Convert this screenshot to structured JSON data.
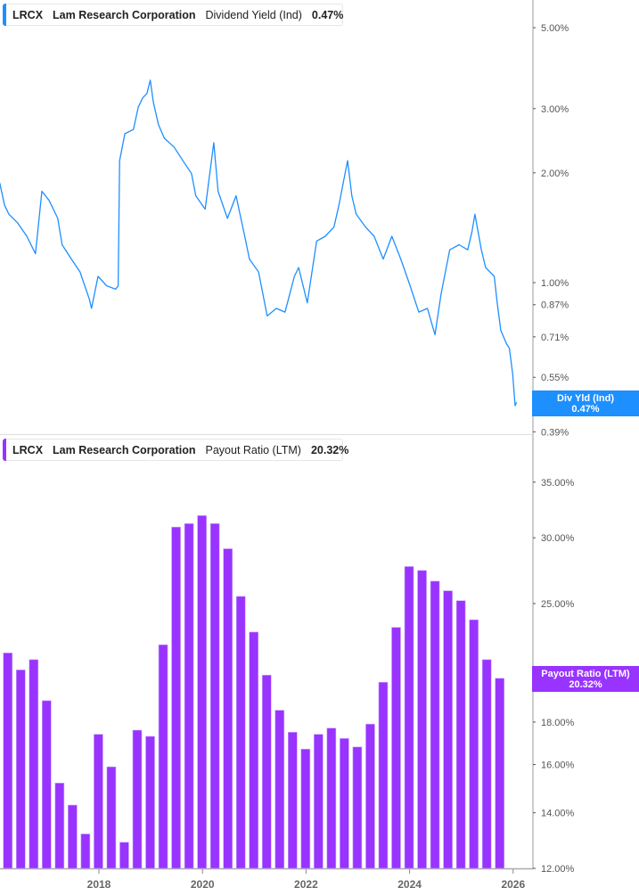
{
  "colors": {
    "dividend_line": "#1e8fff",
    "payout_bar": "#9933ff",
    "axis": "#aaaaaa"
  },
  "top_legend": {
    "ticker": "LRCX",
    "company": "Lam Research Corporation",
    "metric": "Dividend Yield (Ind)",
    "value": "0.47%"
  },
  "bottom_legend": {
    "ticker": "LRCX",
    "company": "Lam Research Corporation",
    "metric": "Payout Ratio (LTM)",
    "value": "20.32%"
  },
  "top_flag": {
    "label": "Div Yld (Ind)",
    "value": "0.47%"
  },
  "bottom_flag": {
    "label": "Payout Ratio (LTM)",
    "value": "20.32%"
  },
  "chart_data": [
    {
      "type": "line",
      "series_name": "Dividend Yield (Ind)",
      "y_scale": "log",
      "ylim": [
        0.36,
        5.6
      ],
      "y_unit": "%",
      "y_ticks": [
        5.0,
        3.0,
        2.0,
        1.0,
        0.87,
        0.71,
        0.55,
        0.39
      ],
      "y_tick_labels": [
        "5.00%",
        "3.00%",
        "2.00%",
        "1.00%",
        "0.87%",
        "0.71%",
        "0.55%",
        "0.39%"
      ],
      "points": [
        [
          "2016-02-01",
          1.88
        ],
        [
          "2016-03-05",
          1.63
        ],
        [
          "2016-04-05",
          1.54
        ],
        [
          "2016-06-05",
          1.46
        ],
        [
          "2016-08-10",
          1.34
        ],
        [
          "2016-10-10",
          1.2
        ],
        [
          "2016-11-25",
          1.78
        ],
        [
          "2017-01-15",
          1.68
        ],
        [
          "2017-03-15",
          1.5
        ],
        [
          "2017-04-15",
          1.27
        ],
        [
          "2017-06-20",
          1.16
        ],
        [
          "2017-08-20",
          1.07
        ],
        [
          "2017-10-25",
          0.9
        ],
        [
          "2017-11-10",
          0.85
        ],
        [
          "2017-12-25",
          1.04
        ],
        [
          "2018-02-25",
          0.98
        ],
        [
          "2018-04-28",
          0.96
        ],
        [
          "2018-05-15",
          0.98
        ],
        [
          "2018-05-25",
          2.16
        ],
        [
          "2018-07-01",
          2.56
        ],
        [
          "2018-09-01",
          2.63
        ],
        [
          "2018-10-05",
          3.03
        ],
        [
          "2018-11-05",
          3.21
        ],
        [
          "2018-12-05",
          3.3
        ],
        [
          "2018-12-28",
          3.59
        ],
        [
          "2019-01-20",
          3.12
        ],
        [
          "2019-02-25",
          2.71
        ],
        [
          "2019-04-05",
          2.49
        ],
        [
          "2019-06-15",
          2.35
        ],
        [
          "2019-08-15",
          2.16
        ],
        [
          "2019-10-15",
          1.99
        ],
        [
          "2019-11-15",
          1.73
        ],
        [
          "2020-01-20",
          1.59
        ],
        [
          "2020-03-20",
          2.42
        ],
        [
          "2020-04-20",
          1.78
        ],
        [
          "2020-06-25",
          1.5
        ],
        [
          "2020-08-25",
          1.73
        ],
        [
          "2020-10-25",
          1.34
        ],
        [
          "2020-11-28",
          1.16
        ],
        [
          "2021-02-01",
          1.07
        ],
        [
          "2021-04-01",
          0.81
        ],
        [
          "2021-06-05",
          0.85
        ],
        [
          "2021-08-05",
          0.83
        ],
        [
          "2021-10-10",
          1.04
        ],
        [
          "2021-11-10",
          1.1
        ],
        [
          "2022-01-10",
          0.88
        ],
        [
          "2022-03-15",
          1.3
        ],
        [
          "2022-05-15",
          1.34
        ],
        [
          "2022-07-15",
          1.42
        ],
        [
          "2022-08-20",
          1.63
        ],
        [
          "2022-09-20",
          1.88
        ],
        [
          "2022-10-20",
          2.16
        ],
        [
          "2022-11-20",
          1.73
        ],
        [
          "2022-12-20",
          1.54
        ],
        [
          "2023-02-25",
          1.42
        ],
        [
          "2023-04-25",
          1.34
        ],
        [
          "2023-06-28",
          1.16
        ],
        [
          "2023-08-28",
          1.34
        ],
        [
          "2023-10-30",
          1.16
        ],
        [
          "2024-01-05",
          0.98
        ],
        [
          "2024-03-05",
          0.83
        ],
        [
          "2024-05-05",
          0.85
        ],
        [
          "2024-06-28",
          0.72
        ],
        [
          "2024-08-10",
          0.93
        ],
        [
          "2024-10-10",
          1.23
        ],
        [
          "2024-12-15",
          1.27
        ],
        [
          "2025-02-15",
          1.23
        ],
        [
          "2025-03-15",
          1.38
        ],
        [
          "2025-04-05",
          1.54
        ],
        [
          "2025-05-20",
          1.23
        ],
        [
          "2025-06-20",
          1.1
        ],
        [
          "2025-08-20",
          1.04
        ],
        [
          "2025-09-10",
          0.88
        ],
        [
          "2025-10-05",
          0.74
        ],
        [
          "2025-11-15",
          0.68
        ],
        [
          "2025-12-05",
          0.66
        ],
        [
          "2025-12-28",
          0.56
        ],
        [
          "2026-01-15",
          0.46
        ],
        [
          "2026-01-25",
          0.47
        ]
      ]
    },
    {
      "type": "bar",
      "series_name": "Payout Ratio (LTM)",
      "y_scale": "log",
      "ylim": [
        12,
        38
      ],
      "y_unit": "%",
      "y_ticks": [
        35,
        30,
        25,
        18,
        16,
        14,
        12
      ],
      "y_tick_labels": [
        "35.00%",
        "30.00%",
        "25.00%",
        "18.00%",
        "16.00%",
        "14.00%",
        "12.00%"
      ],
      "x_ticks": [
        "2018",
        "2020",
        "2022",
        "2024",
        "2026"
      ],
      "categories": [
        "2016-03",
        "2016-06",
        "2016-09",
        "2016-12",
        "2017-03",
        "2017-06",
        "2017-09",
        "2017-12",
        "2018-03",
        "2018-06",
        "2018-09",
        "2018-12",
        "2019-03",
        "2019-06",
        "2019-09",
        "2019-12",
        "2020-03",
        "2020-06",
        "2020-09",
        "2020-12",
        "2021-03",
        "2021-06",
        "2021-09",
        "2021-12",
        "2022-03",
        "2022-06",
        "2022-09",
        "2022-12",
        "2023-03",
        "2023-06",
        "2023-09",
        "2023-12",
        "2024-03",
        "2024-06",
        "2024-09",
        "2024-12",
        "2025-03",
        "2025-06",
        "2025-09"
      ],
      "values": [
        21.8,
        20.8,
        21.4,
        19.1,
        15.2,
        14.3,
        13.2,
        17.4,
        15.9,
        12.9,
        17.6,
        17.3,
        22.3,
        30.9,
        31.2,
        31.9,
        31.2,
        29.1,
        25.5,
        23.1,
        20.5,
        18.6,
        17.5,
        16.7,
        17.4,
        17.7,
        17.2,
        16.8,
        17.9,
        20.1,
        23.4,
        27.7,
        27.4,
        26.6,
        25.9,
        25.2,
        23.9,
        21.4,
        20.32
      ]
    }
  ]
}
